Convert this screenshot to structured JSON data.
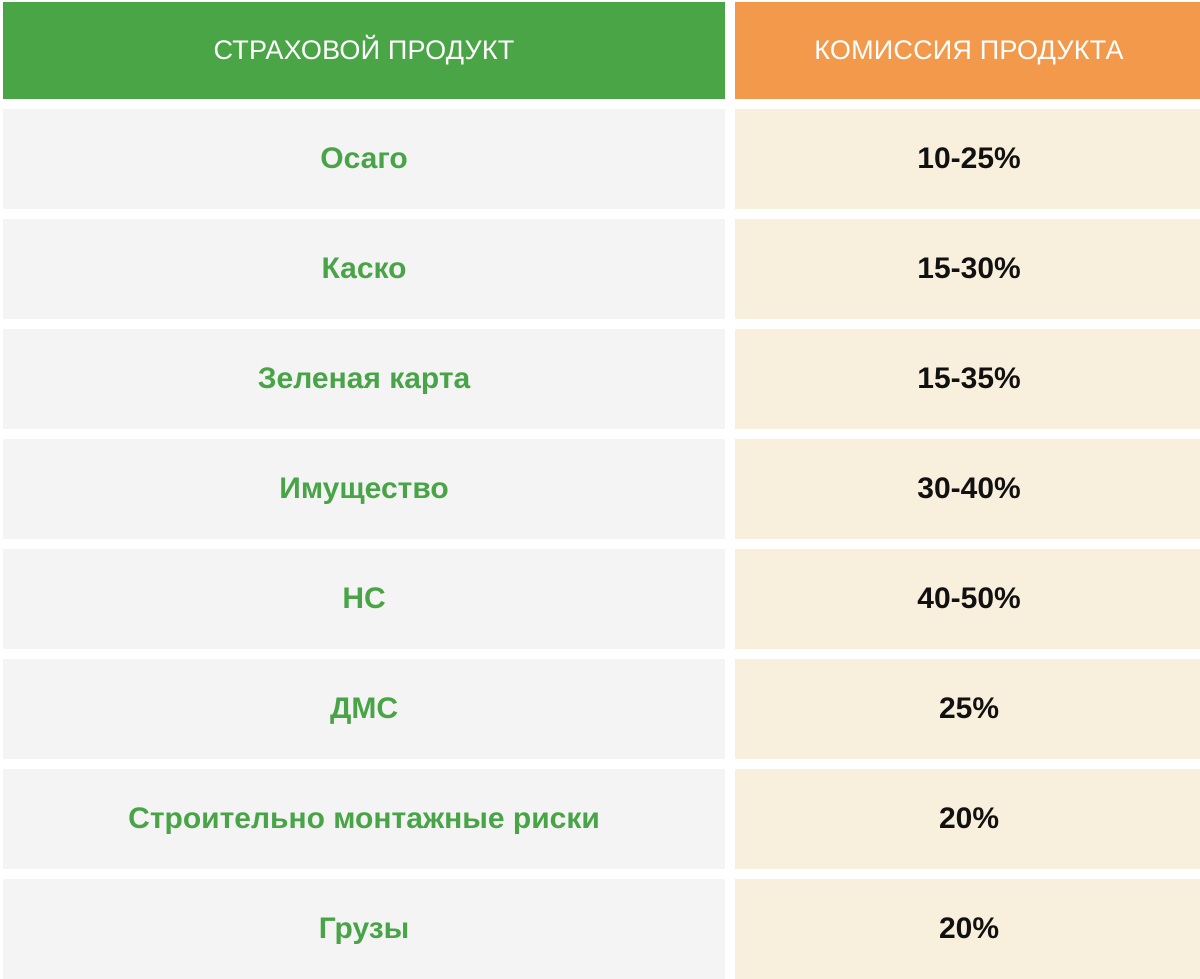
{
  "table": {
    "headers": {
      "product": "СТРАХОВОЙ ПРОДУКТ",
      "commission": "КОМИССИЯ ПРОДУКТА"
    },
    "rows": [
      {
        "product": "Осаго",
        "commission": "10-25%"
      },
      {
        "product": "Каско",
        "commission": "15-30%"
      },
      {
        "product": "Зеленая карта",
        "commission": "15-35%"
      },
      {
        "product": "Имущество",
        "commission": "30-40%"
      },
      {
        "product": "НС",
        "commission": "40-50%"
      },
      {
        "product": "ДМС",
        "commission": "25%"
      },
      {
        "product": "Строительно монтажные риски",
        "commission": "20%"
      },
      {
        "product": "Грузы",
        "commission": "20%"
      }
    ]
  },
  "colors": {
    "header_product_bg": "#4aa546",
    "header_commission_bg": "#f2994b",
    "row_product_bg": "#f4f4f4",
    "row_commission_bg": "#f8efdc",
    "product_text": "#49a448",
    "commission_text": "#111111"
  }
}
